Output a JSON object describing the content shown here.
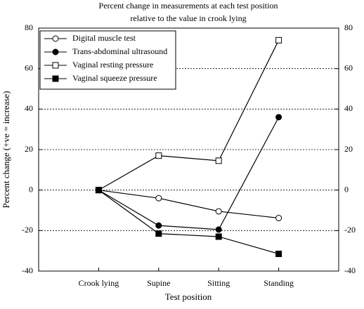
{
  "chart_data": {
    "type": "line",
    "title": [
      "Percent change in measurements at each test position",
      "relative to the value in crook lying"
    ],
    "xlabel": "Test position",
    "ylabel": "Percent change (+ve = increase)",
    "categories": [
      "Crook lying",
      "Supine",
      "Sitting",
      "Standing"
    ],
    "series": [
      {
        "name": "Digital muscle test",
        "color": "#000000",
        "marker": "circle",
        "filled": false,
        "values": [
          0,
          -4,
          -10.5,
          -13.8
        ]
      },
      {
        "name": "Trans-abdominal ultrasound",
        "color": "#000000",
        "marker": "circle",
        "filled": true,
        "values": [
          0,
          -17.5,
          -19.5,
          36
        ]
      },
      {
        "name": "Vaginal resting pressure",
        "color": "#000000",
        "marker": "square",
        "filled": false,
        "values": [
          0,
          17,
          14.5,
          74
        ]
      },
      {
        "name": "Vaginal squeeze pressure",
        "color": "#000000",
        "marker": "square",
        "filled": true,
        "values": [
          0,
          -21.5,
          -23,
          -31.5
        ]
      }
    ],
    "ylim": [
      -40,
      80
    ],
    "yticks": [
      -40,
      -20,
      0,
      20,
      40,
      60,
      80
    ],
    "grid": true,
    "legend": "upper-left"
  }
}
